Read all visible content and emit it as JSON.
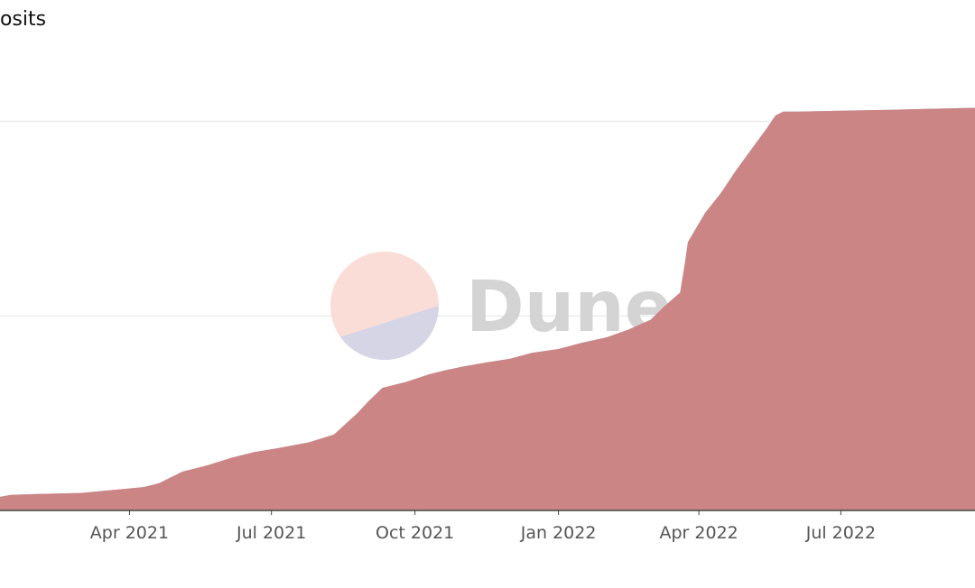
{
  "header": {
    "title": "posits"
  },
  "watermark": {
    "text": "Dune"
  },
  "colors": {
    "series_front": "#cc8585",
    "series_back": "#9aa6d6",
    "gridline": "#ebebeb",
    "axis": "#444444",
    "logo_top": "#fbddd7",
    "logo_bottom": "#d6d5e6"
  },
  "chart_data": {
    "type": "area",
    "xlabel": "",
    "ylabel": "",
    "x_range": [
      "2021-01-08",
      "2022-09-25"
    ],
    "y_range": [
      0,
      2.04
    ],
    "gridlines": [
      1,
      2
    ],
    "grid": true,
    "legend": "none",
    "x_ticks": [
      {
        "date": "2021-04-01",
        "label": "Apr 2021"
      },
      {
        "date": "2021-07-01",
        "label": "Jul 2021"
      },
      {
        "date": "2021-10-01",
        "label": "Oct 2021"
      },
      {
        "date": "2022-01-01",
        "label": "Jan 2022"
      },
      {
        "date": "2022-04-01",
        "label": "Apr 2022"
      },
      {
        "date": "2022-07-01",
        "label": "Jul 2022"
      }
    ],
    "series": [
      {
        "x": [
          "2021-01-08",
          "2021-01-15",
          "2021-02-01",
          "2021-03-01",
          "2021-04-10",
          "2021-04-20",
          "2021-05-05",
          "2021-05-20",
          "2021-06-05",
          "2021-06-20",
          "2021-07-05",
          "2021-07-25",
          "2021-08-10",
          "2021-08-25",
          "2021-09-01",
          "2021-09-10",
          "2021-09-20",
          "2021-09-25",
          "2021-10-10",
          "2021-10-20",
          "2021-11-01",
          "2021-11-15",
          "2021-12-01",
          "2021-12-15",
          "2022-01-01",
          "2022-01-15",
          "2022-02-01",
          "2022-02-15",
          "2022-03-01",
          "2022-03-10",
          "2022-03-20",
          "2022-03-23",
          "2022-03-25",
          "2022-04-05",
          "2022-04-15",
          "2022-04-25",
          "2022-05-05",
          "2022-05-15",
          "2022-05-20",
          "2022-05-25",
          "2022-06-01",
          "2022-07-01",
          "2022-08-01",
          "2022-09-25"
        ],
        "values": [
          0.07,
          0.08,
          0.085,
          0.09,
          0.12,
          0.14,
          0.2,
          0.23,
          0.27,
          0.3,
          0.32,
          0.35,
          0.39,
          0.5,
          0.56,
          0.63,
          0.65,
          0.66,
          0.7,
          0.72,
          0.74,
          0.76,
          0.78,
          0.81,
          0.83,
          0.86,
          0.89,
          0.93,
          0.98,
          1.05,
          1.12,
          1.27,
          1.38,
          1.53,
          1.63,
          1.75,
          1.86,
          1.97,
          2.03,
          2.05,
          2.05,
          2.055,
          2.06,
          2.07
        ]
      },
      {
        "x": [
          "2021-01-08",
          "2021-01-15",
          "2021-02-01",
          "2021-03-01",
          "2021-04-10",
          "2021-04-20",
          "2021-05-05",
          "2021-05-20",
          "2021-06-05",
          "2021-06-20",
          "2021-07-05",
          "2021-07-25",
          "2021-08-10",
          "2021-08-20",
          "2021-09-01",
          "2021-09-10",
          "2021-09-20",
          "2021-09-25",
          "2021-10-10",
          "2021-10-20",
          "2021-11-01",
          "2021-11-15",
          "2021-12-01",
          "2021-12-15",
          "2022-01-01",
          "2022-01-15",
          "2022-02-01",
          "2022-02-15",
          "2022-03-01",
          "2022-03-10",
          "2022-03-20",
          "2022-03-23",
          "2022-03-25",
          "2022-04-05",
          "2022-04-15",
          "2022-04-25",
          "2022-05-05",
          "2022-05-15",
          "2022-05-20",
          "2022-05-25",
          "2022-06-01",
          "2022-07-01",
          "2022-08-01",
          "2022-09-25"
        ],
        "values": [
          0.07,
          0.08,
          0.085,
          0.09,
          0.12,
          0.14,
          0.2,
          0.22,
          0.27,
          0.3,
          0.32,
          0.35,
          0.39,
          0.45,
          0.53,
          0.61,
          0.64,
          0.65,
          0.69,
          0.72,
          0.74,
          0.76,
          0.78,
          0.81,
          0.83,
          0.86,
          0.89,
          0.93,
          0.98,
          1.05,
          1.12,
          1.27,
          1.38,
          1.53,
          1.63,
          1.75,
          1.86,
          1.97,
          2.03,
          2.05,
          2.05,
          2.055,
          2.06,
          2.07
        ]
      }
    ]
  }
}
